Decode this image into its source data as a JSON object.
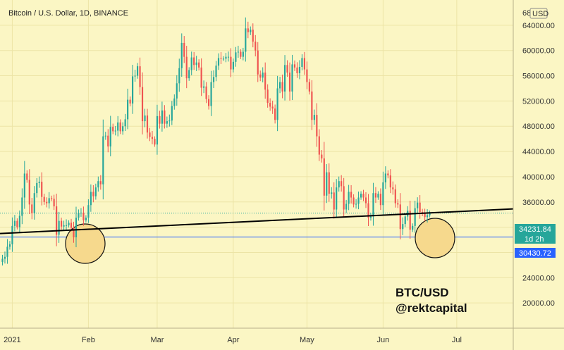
{
  "header": {
    "title": "Bitcoin / U.S. Dollar, 1D, BINANCE",
    "currency": "USD"
  },
  "watermark": {
    "line1": "BTC/USD",
    "line2": "@rektcapital"
  },
  "price_tags": {
    "current": "34231.84",
    "countdown": "1d 2h",
    "support": "30430.72"
  },
  "colors": {
    "background": "#fbf6c4",
    "up": "#26a69a",
    "down": "#ef5350",
    "support_line": "#2962ff",
    "current_tag": "#26a69a",
    "support_tag": "#2962ff",
    "trendline": "#000000",
    "circle_fill": "#f6d98d"
  },
  "chart_data": {
    "type": "candlestick",
    "title": "Bitcoin / U.S. Dollar, 1D, BINANCE",
    "x_range": [
      "2020-12-27",
      "2021-07-24"
    ],
    "ylim": [
      16000,
      68000
    ],
    "y_ticks": [
      20000,
      24000,
      28000,
      32000,
      36000,
      40000,
      44000,
      48000,
      52000,
      56000,
      60000,
      64000
    ],
    "y_tick_labels": [
      "20000.00",
      "24000.00",
      "28000.00",
      "32000.00",
      "36000.00",
      "40000.00",
      "44000.00",
      "48000.00",
      "52000.00",
      "56000.00",
      "60000.00",
      "64000.00"
    ],
    "top_label": "68",
    "x_ticks": [
      {
        "date": "2021-01-01",
        "label": "2021"
      },
      {
        "date": "2021-02-01",
        "label": "Feb"
      },
      {
        "date": "2021-03-01",
        "label": "Mar"
      },
      {
        "date": "2021-04-01",
        "label": "Apr"
      },
      {
        "date": "2021-05-01",
        "label": "May"
      },
      {
        "date": "2021-06-01",
        "label": "Jun"
      },
      {
        "date": "2021-07-01",
        "label": "Jul"
      }
    ],
    "candles_start": "2020-12-27",
    "closes": [
      26500,
      27000,
      27300,
      28900,
      29300,
      32200,
      33000,
      32000,
      33800,
      36700,
      40500,
      39500,
      35600,
      34200,
      37400,
      39000,
      39200,
      36800,
      36000,
      35800,
      36600,
      36500,
      35300,
      30800,
      33000,
      32100,
      32300,
      32300,
      32700,
      31900,
      30400,
      33500,
      34300,
      34300,
      33100,
      33500,
      35500,
      37600,
      36900,
      38300,
      39300,
      38800,
      46400,
      46500,
      44800,
      47900,
      47200,
      47300,
      48600,
      47200,
      48000,
      49100,
      52200,
      51600,
      55900,
      56000,
      57500,
      54200,
      48800,
      49700,
      47000,
      46300,
      46000,
      45100,
      49600,
      48400,
      50500,
      48400,
      48800,
      48900,
      51200,
      52400,
      54800,
      57200,
      61200,
      59000,
      55600,
      56900,
      58900,
      57700,
      58100,
      57300,
      54100,
      54300,
      52300,
      51200,
      55000,
      55800,
      57600,
      58800,
      58700,
      58700,
      59000,
      59000,
      57000,
      58200,
      59700,
      59800,
      59000,
      59800,
      63500,
      62900,
      63300,
      61400,
      60000,
      56200,
      55700,
      56500,
      53800,
      51700,
      51100,
      50800,
      49000,
      54000,
      55000,
      53500,
      57700,
      56500,
      53500,
      57800,
      57300,
      56400,
      57400,
      58800,
      57000,
      55000,
      53500,
      49000,
      49800,
      46400,
      43500,
      42900,
      37000,
      40700,
      37300,
      37500,
      34800,
      38300,
      39300,
      38500,
      34800,
      35700,
      37600,
      36700,
      35600,
      35700,
      36700,
      37300,
      36700,
      35800,
      33500,
      33700,
      37400,
      36700,
      37300,
      35500,
      39100,
      40500,
      40200,
      38300,
      38000,
      35800,
      35600,
      31700,
      32500,
      33700,
      34600,
      31600,
      32200,
      35000,
      35900,
      34400,
      34200,
      33600,
      33900,
      34231.84
    ],
    "support_level": 30430.72,
    "current_price": 34231.84,
    "trendline": [
      {
        "date": "2020-12-27",
        "value": 31000
      },
      {
        "date": "2021-07-24",
        "value": 34900
      }
    ]
  }
}
